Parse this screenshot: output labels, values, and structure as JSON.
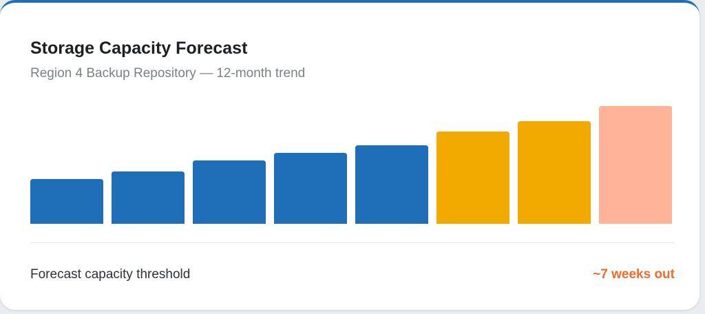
{
  "chart_data": {
    "type": "bar",
    "title": "Storage Capacity Forecast",
    "subtitle": "Region 4 Backup Repository — 12-month trend",
    "values": [
      65,
      76,
      92,
      103,
      114,
      134,
      149,
      171
    ],
    "colors": [
      "#1f6fb8",
      "#1f6fb8",
      "#1f6fb8",
      "#1f6fb8",
      "#1f6fb8",
      "#f2a900",
      "#f2a900",
      "#ffb49a"
    ]
  },
  "footer": {
    "label": "Forecast capacity threshold",
    "value": "~7 weeks out"
  }
}
